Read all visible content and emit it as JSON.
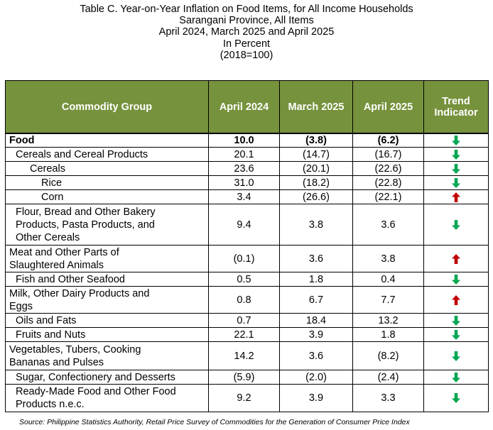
{
  "title": {
    "line1": "Table C. Year-on-Year Inflation on Food Items, for All Income Households",
    "line2": "Sarangani Province, All Items",
    "line3": "April 2024, March 2025 and April 2025",
    "line4": "In Percent",
    "line5": "(2018=100)"
  },
  "headers": {
    "commodity": "Commodity Group",
    "apr2024": "April 2024",
    "mar2025": "March 2025",
    "apr2025": "April 2025",
    "trend_line1": "Trend",
    "trend_line2": "Indicator"
  },
  "colors": {
    "header_bg": "#76923c",
    "down": "#00a650",
    "up": "#c00000"
  },
  "rows": [
    {
      "label": "Food",
      "apr2024": "10.0",
      "mar2025": "(3.8)",
      "apr2025": "(6.2)",
      "trend": "down-arrow-icon"
    },
    {
      "label": "Cereals and Cereal Products",
      "apr2024": "20.1",
      "mar2025": "(14.7)",
      "apr2025": "(16.7)",
      "trend": "down-arrow-icon"
    },
    {
      "label": "Cereals",
      "apr2024": "23.6",
      "mar2025": "(20.1)",
      "apr2025": "(22.6)",
      "trend": "down-arrow-icon"
    },
    {
      "label": "Rice",
      "apr2024": "31.0",
      "mar2025": "(18.2)",
      "apr2025": "(22.8)",
      "trend": "down-arrow-icon"
    },
    {
      "label": "Corn",
      "apr2024": "3.4",
      "mar2025": "(26.6)",
      "apr2025": "(22.1)",
      "trend": "up-arrow-icon"
    },
    {
      "label_lines": [
        "Flour, Bread and Other Bakery",
        "Products, Pasta Products,  and",
        "Other Cereals"
      ],
      "apr2024": "9.4",
      "mar2025": "3.8",
      "apr2025": "3.6",
      "trend": "down-arrow-icon"
    },
    {
      "label_lines": [
        "Meat and Other Parts of",
        "Slaughtered Animals"
      ],
      "apr2024": "(0.1)",
      "mar2025": "3.6",
      "apr2025": "3.8",
      "trend": "up-arrow-icon"
    },
    {
      "label": "Fish and Other Seafood",
      "apr2024": "0.5",
      "mar2025": "1.8",
      "apr2025": "0.4",
      "trend": "down-arrow-icon"
    },
    {
      "label_lines": [
        "Milk, Other Dairy Products and",
        "Eggs"
      ],
      "apr2024": "0.8",
      "mar2025": "6.7",
      "apr2025": "7.7",
      "trend": "up-arrow-icon"
    },
    {
      "label": "Oils and Fats",
      "apr2024": "0.7",
      "mar2025": "18.4",
      "apr2025": "13.2",
      "trend": "down-arrow-icon"
    },
    {
      "label": "Fruits and Nuts",
      "apr2024": "22.1",
      "mar2025": "3.9",
      "apr2025": "1.8",
      "trend": "down-arrow-icon"
    },
    {
      "label_lines": [
        "Vegetables, Tubers, Cooking",
        "Bananas and  Pulses"
      ],
      "apr2024": "14.2",
      "mar2025": "3.6",
      "apr2025": "(8.2)",
      "trend": "down-arrow-icon"
    },
    {
      "label": "Sugar, Confectionery and Desserts",
      "apr2024": "(5.9)",
      "mar2025": "(2.0)",
      "apr2025": "(2.4)",
      "trend": "down-arrow-icon"
    },
    {
      "label_lines": [
        "Ready-Made Food and Other Food",
        "Products n.e.c."
      ],
      "apr2024": "9.2",
      "mar2025": "3.9",
      "apr2025": "3.3",
      "trend": "down-arrow-icon"
    }
  ],
  "source": "Source: Philippine Statistics Authority, Retail Price Survey of Commodities for the Generation of Consumer Price Index"
}
